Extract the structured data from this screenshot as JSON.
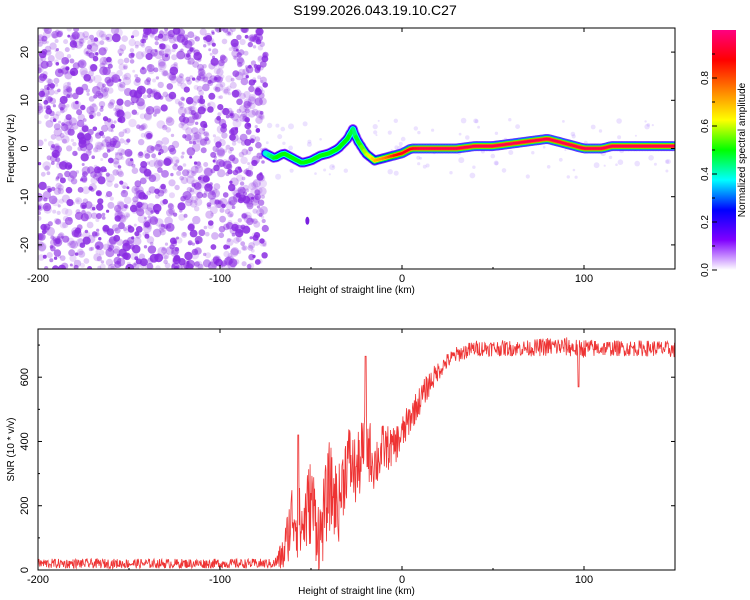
{
  "title": "S199.2026.043.19.10.C27",
  "chart_data": [
    {
      "type": "heatmap",
      "name": "spectrogram",
      "xlabel": "Height of straight line (km)",
      "ylabel": "Frequency (Hz)",
      "xlim": [
        -200,
        150
      ],
      "ylim": [
        -25,
        25
      ],
      "xticks": [
        -200,
        -100,
        0,
        100
      ],
      "yticks": [
        -20,
        -10,
        0,
        10,
        20
      ],
      "colorbar": {
        "label": "Normalized spectral amplitude",
        "range": [
          0.0,
          1.0
        ],
        "ticks": [
          0.0,
          0.2,
          0.4,
          0.6,
          0.8
        ],
        "colormap": [
          "#ffffff",
          "#8000ff",
          "#0000ff",
          "#00ffff",
          "#00ff00",
          "#ffff00",
          "#ff8000",
          "#ff0000",
          "#ff0080"
        ]
      },
      "regions": [
        {
          "description": "noise (random speckle, purple)",
          "x_range": [
            -200,
            -75
          ],
          "y_range": [
            -25,
            25
          ],
          "amplitude": "0.0-0.2"
        },
        {
          "description": "signal track",
          "x_range": [
            -75,
            150
          ],
          "amplitude": "0.3-1.0"
        }
      ],
      "signal_track": {
        "x": [
          -75,
          -70,
          -65,
          -60,
          -55,
          -50,
          -45,
          -40,
          -35,
          -30,
          -27,
          -25,
          -20,
          -15,
          -10,
          -5,
          0,
          5,
          10,
          20,
          30,
          40,
          50,
          60,
          70,
          80,
          85,
          90,
          95,
          100,
          105,
          110,
          115,
          120,
          130,
          140,
          150
        ],
        "y": [
          -1,
          -2,
          -1,
          -2,
          -3,
          -2.5,
          -1.5,
          -1,
          0,
          2,
          4,
          2,
          -1,
          -2.5,
          -2,
          -1.5,
          -1,
          0,
          0,
          0,
          0,
          0.5,
          0.5,
          1,
          1.5,
          2,
          1.5,
          1,
          0.5,
          0,
          0,
          0,
          0.5,
          0.5,
          0.5,
          0.5,
          0.5
        ],
        "peak_amplitude": [
          0.4,
          0.5,
          0.5,
          0.5,
          0.5,
          0.5,
          0.5,
          0.5,
          0.5,
          0.5,
          0.45,
          0.5,
          0.6,
          0.7,
          0.75,
          0.85,
          0.9,
          0.9,
          0.95,
          0.95,
          0.95,
          0.95,
          0.95,
          0.95,
          0.95,
          0.95,
          0.95,
          0.95,
          0.95,
          0.95,
          0.95,
          0.95,
          0.95,
          0.95,
          0.95,
          0.95,
          0.95
        ]
      },
      "outlier": {
        "x": -52,
        "y": -15
      }
    },
    {
      "type": "line",
      "name": "snr",
      "xlabel": "Height of straight line (km)",
      "ylabel": "SNR (10 * v/v)",
      "xlim": [
        -200,
        150
      ],
      "ylim": [
        0,
        750
      ],
      "xticks": [
        -200,
        -100,
        0,
        100
      ],
      "yticks": [
        0,
        200,
        400,
        600
      ],
      "color": "#ee3333",
      "series": [
        {
          "name": "SNR",
          "envelope_x": [
            -200,
            -150,
            -100,
            -70,
            -65,
            -60,
            -55,
            -50,
            -45,
            -40,
            -35,
            -30,
            -25,
            -20,
            -15,
            -10,
            -5,
            0,
            5,
            10,
            15,
            20,
            25,
            30,
            40,
            50,
            60,
            70,
            80,
            90,
            95,
            100,
            110,
            120,
            130,
            140,
            150
          ],
          "envelope_y": [
            20,
            20,
            20,
            20,
            50,
            180,
            130,
            220,
            100,
            260,
            200,
            350,
            300,
            400,
            330,
            380,
            380,
            420,
            480,
            530,
            580,
            620,
            650,
            670,
            690,
            690,
            690,
            690,
            695,
            695,
            690,
            690,
            690,
            690,
            690,
            690,
            685
          ],
          "noise_amplitude": [
            15,
            15,
            15,
            15,
            60,
            120,
            120,
            140,
            120,
            140,
            120,
            120,
            110,
            110,
            90,
            80,
            60,
            60,
            50,
            45,
            40,
            30,
            25,
            25,
            25,
            25,
            25,
            25,
            30,
            30,
            30,
            30,
            25,
            25,
            25,
            25,
            25
          ],
          "spikes": [
            {
              "x": -20,
              "y": 665
            },
            {
              "x": -57,
              "y": 420
            },
            {
              "x": 97,
              "y": 570
            }
          ]
        }
      ]
    }
  ]
}
